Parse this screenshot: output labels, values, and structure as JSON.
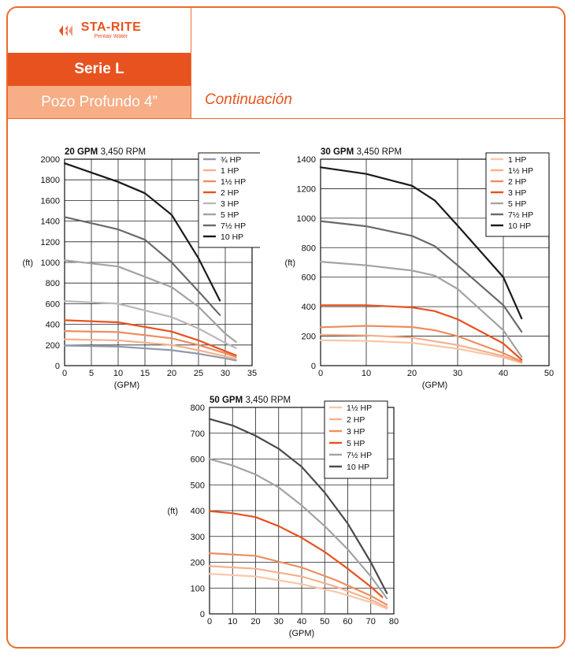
{
  "header": {
    "brand": "STA-RITE",
    "brand_sub": "Pentair Water",
    "series": "Serie L",
    "product": "Pozo Profundo 4”",
    "continuation": "Continuación"
  },
  "colors": {
    "accent": "#e8521f",
    "accent_light": "#f7ad86",
    "border": "#ec6a2c"
  },
  "chart_data": [
    {
      "type": "line",
      "title": "20 GPM",
      "subtitle": "3,450 RPM",
      "xlabel": "(GPM)",
      "ylabel": "(ft)",
      "xlim": [
        0,
        35
      ],
      "ylim": [
        0,
        2000
      ],
      "xticks": [
        0,
        5,
        10,
        15,
        20,
        25,
        30,
        35
      ],
      "yticks": [
        0,
        200,
        400,
        600,
        800,
        1000,
        1200,
        1400,
        1600,
        1800,
        2000
      ],
      "grid": true,
      "legend_position": "top-right",
      "series": [
        {
          "name": "¾ HP",
          "color": "#8f9aab",
          "points": [
            [
              0,
              195
            ],
            [
              10,
              185
            ],
            [
              20,
              150
            ],
            [
              25,
              115
            ],
            [
              30,
              70
            ],
            [
              32,
              50
            ]
          ]
        },
        {
          "name": "1 HP",
          "color": "#f5b08c",
          "points": [
            [
              0,
              255
            ],
            [
              10,
              245
            ],
            [
              20,
              200
            ],
            [
              25,
              150
            ],
            [
              30,
              90
            ],
            [
              32,
              65
            ]
          ]
        },
        {
          "name": "1½ HP",
          "color": "#ef8d5d",
          "points": [
            [
              0,
              335
            ],
            [
              10,
              325
            ],
            [
              20,
              265
            ],
            [
              25,
              200
            ],
            [
              30,
              120
            ],
            [
              32,
              85
            ]
          ]
        },
        {
          "name": "2 HP",
          "color": "#e8521f",
          "points": [
            [
              0,
              440
            ],
            [
              10,
              420
            ],
            [
              20,
              330
            ],
            [
              25,
              245
            ],
            [
              30,
              140
            ],
            [
              32,
              100
            ]
          ]
        },
        {
          "name": "3 HP",
          "color": "#b8b8b8",
          "points": [
            [
              0,
              625
            ],
            [
              10,
              600
            ],
            [
              20,
              470
            ],
            [
              25,
              360
            ],
            [
              30,
              220
            ],
            [
              32,
              170
            ]
          ]
        },
        {
          "name": "5 HP",
          "color": "#a3a3a3",
          "points": [
            [
              0,
              1020
            ],
            [
              10,
              960
            ],
            [
              20,
              760
            ],
            [
              25,
              570
            ],
            [
              30,
              310
            ],
            [
              32,
              230
            ]
          ]
        },
        {
          "name": "7½ HP",
          "color": "#6a6a6a",
          "points": [
            [
              0,
              1440
            ],
            [
              10,
              1320
            ],
            [
              15,
              1220
            ],
            [
              20,
              1000
            ],
            [
              25,
              720
            ],
            [
              29,
              490
            ]
          ]
        },
        {
          "name": "10 HP",
          "color": "#1a1a1a",
          "points": [
            [
              0,
              1960
            ],
            [
              10,
              1780
            ],
            [
              15,
              1670
            ],
            [
              20,
              1460
            ],
            [
              25,
              1040
            ],
            [
              29,
              630
            ]
          ]
        }
      ]
    },
    {
      "type": "line",
      "title": "30 GPM",
      "subtitle": "3,450 RPM",
      "xlabel": "(GPM)",
      "ylabel": "(ft)",
      "xlim": [
        0,
        50
      ],
      "ylim": [
        0,
        1400
      ],
      "xticks": [
        0,
        10,
        20,
        30,
        40,
        50
      ],
      "yticks": [
        0,
        200,
        400,
        600,
        800,
        1000,
        1200,
        1400
      ],
      "grid": true,
      "legend_position": "top-right",
      "series": [
        {
          "name": "1 HP",
          "color": "#f9c6a8",
          "points": [
            [
              0,
              172
            ],
            [
              10,
              168
            ],
            [
              20,
              155
            ],
            [
              30,
              115
            ],
            [
              40,
              55
            ],
            [
              44,
              18
            ]
          ]
        },
        {
          "name": "1½ HP",
          "color": "#f5b08c",
          "points": [
            [
              0,
              210
            ],
            [
              10,
              205
            ],
            [
              20,
              190
            ],
            [
              30,
              140
            ],
            [
              40,
              65
            ],
            [
              44,
              22
            ]
          ]
        },
        {
          "name": "2 HP",
          "color": "#ef8d5d",
          "points": [
            [
              0,
              260
            ],
            [
              10,
              270
            ],
            [
              20,
              262
            ],
            [
              25,
              240
            ],
            [
              30,
              200
            ],
            [
              40,
              85
            ],
            [
              44,
              28
            ]
          ]
        },
        {
          "name": "3 HP",
          "color": "#e8521f",
          "points": [
            [
              0,
              410
            ],
            [
              10,
              410
            ],
            [
              20,
              395
            ],
            [
              25,
              370
            ],
            [
              30,
              315
            ],
            [
              40,
              150
            ],
            [
              44,
              40
            ]
          ]
        },
        {
          "name": "5 HP",
          "color": "#a3a3a3",
          "points": [
            [
              0,
              705
            ],
            [
              10,
              680
            ],
            [
              20,
              645
            ],
            [
              25,
              610
            ],
            [
              30,
              520
            ],
            [
              40,
              240
            ],
            [
              44,
              60
            ]
          ]
        },
        {
          "name": "7½ HP",
          "color": "#6a6a6a",
          "points": [
            [
              0,
              980
            ],
            [
              10,
              945
            ],
            [
              20,
              880
            ],
            [
              25,
              810
            ],
            [
              30,
              680
            ],
            [
              40,
              410
            ],
            [
              44,
              230
            ]
          ]
        },
        {
          "name": "10 HP",
          "color": "#1a1a1a",
          "points": [
            [
              0,
              1345
            ],
            [
              10,
              1300
            ],
            [
              20,
              1220
            ],
            [
              25,
              1120
            ],
            [
              30,
              950
            ],
            [
              40,
              600
            ],
            [
              44,
              320
            ]
          ]
        }
      ]
    },
    {
      "type": "line",
      "title": "50 GPM",
      "subtitle": "3,450 RPM",
      "xlabel": "(GPM)",
      "ylabel": "(ft)",
      "xlim": [
        0,
        80
      ],
      "ylim": [
        0,
        800
      ],
      "xticks": [
        0,
        10,
        20,
        30,
        40,
        50,
        60,
        70,
        80
      ],
      "yticks": [
        0,
        100,
        200,
        300,
        400,
        500,
        600,
        700,
        800
      ],
      "grid": true,
      "legend_position": "top-right",
      "series": [
        {
          "name": "1½ HP",
          "color": "#f9c6a8",
          "points": [
            [
              0,
              155
            ],
            [
              20,
              145
            ],
            [
              40,
              115
            ],
            [
              55,
              85
            ],
            [
              70,
              45
            ],
            [
              77,
              20
            ]
          ]
        },
        {
          "name": "2 HP",
          "color": "#f5b08c",
          "points": [
            [
              0,
              185
            ],
            [
              20,
              175
            ],
            [
              40,
              145
            ],
            [
              55,
              105
            ],
            [
              70,
              55
            ],
            [
              77,
              25
            ]
          ]
        },
        {
          "name": "3 HP",
          "color": "#ef8d5d",
          "points": [
            [
              0,
              235
            ],
            [
              20,
              225
            ],
            [
              40,
              180
            ],
            [
              55,
              130
            ],
            [
              70,
              70
            ],
            [
              77,
              35
            ]
          ]
        },
        {
          "name": "5 HP",
          "color": "#e8521f",
          "points": [
            [
              0,
              398
            ],
            [
              10,
              390
            ],
            [
              20,
              375
            ],
            [
              30,
              340
            ],
            [
              40,
              295
            ],
            [
              50,
              240
            ],
            [
              60,
              175
            ],
            [
              70,
              105
            ],
            [
              75,
              65
            ]
          ]
        },
        {
          "name": "7½ HP",
          "color": "#a3a3a3",
          "points": [
            [
              0,
              600
            ],
            [
              10,
              575
            ],
            [
              20,
              540
            ],
            [
              30,
              490
            ],
            [
              40,
              420
            ],
            [
              50,
              340
            ],
            [
              60,
              250
            ],
            [
              70,
              145
            ],
            [
              77,
              60
            ]
          ]
        },
        {
          "name": "10 HP",
          "color": "#4a4a4a",
          "points": [
            [
              0,
              755
            ],
            [
              10,
              730
            ],
            [
              20,
              690
            ],
            [
              30,
              640
            ],
            [
              40,
              570
            ],
            [
              50,
              470
            ],
            [
              60,
              350
            ],
            [
              70,
              200
            ],
            [
              77,
              80
            ]
          ]
        }
      ]
    }
  ]
}
